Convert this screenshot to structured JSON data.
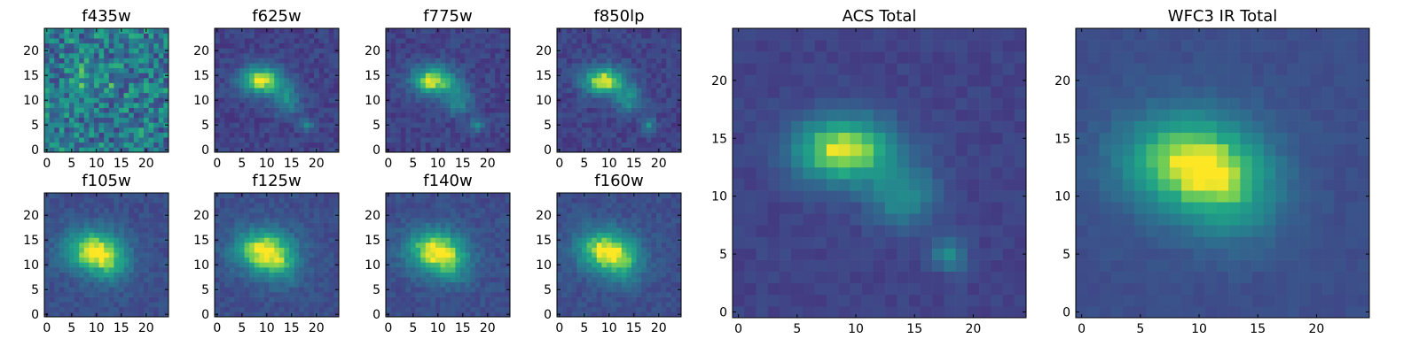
{
  "figure": {
    "background": "#ffffff",
    "colormap": "viridis"
  },
  "chart_data": [
    {
      "type": "heatmap",
      "title": "f435w",
      "grid": [
        25,
        25
      ],
      "xlim": [
        0,
        24
      ],
      "ylim": [
        0,
        24
      ],
      "xticks": [
        "0",
        "5",
        "10",
        "15",
        "20"
      ],
      "yticks": [
        "0",
        "5",
        "10",
        "15",
        "20"
      ],
      "noise": 0.55,
      "background_level": 0.5,
      "sources": [
        {
          "x": 9,
          "y": 14,
          "peak": 0.2,
          "sx": 3,
          "sy": 2
        }
      ]
    },
    {
      "type": "heatmap",
      "title": "f625w",
      "grid": [
        25,
        25
      ],
      "xlim": [
        0,
        24
      ],
      "ylim": [
        0,
        24
      ],
      "xticks": [
        "0",
        "5",
        "10",
        "15",
        "20"
      ],
      "yticks": [
        "0",
        "5",
        "10",
        "15",
        "20"
      ],
      "noise": 0.15,
      "background_level": 0.25,
      "sources": [
        {
          "x": 9,
          "y": 14,
          "peak": 0.75,
          "sx": 3,
          "sy": 2
        },
        {
          "x": 14,
          "y": 10,
          "peak": 0.35,
          "sx": 2,
          "sy": 2
        },
        {
          "x": 18,
          "y": 5,
          "peak": 0.35,
          "sx": 1,
          "sy": 1
        }
      ]
    },
    {
      "type": "heatmap",
      "title": "f775w",
      "grid": [
        25,
        25
      ],
      "xlim": [
        0,
        24
      ],
      "ylim": [
        0,
        24
      ],
      "xticks": [
        "0",
        "5",
        "10",
        "15",
        "20"
      ],
      "yticks": [
        "0",
        "5",
        "10",
        "15",
        "20"
      ],
      "noise": 0.15,
      "background_level": 0.25,
      "sources": [
        {
          "x": 9,
          "y": 14,
          "peak": 0.75,
          "sx": 3,
          "sy": 2
        },
        {
          "x": 14,
          "y": 10,
          "peak": 0.35,
          "sx": 2,
          "sy": 2
        },
        {
          "x": 18,
          "y": 5,
          "peak": 0.35,
          "sx": 1,
          "sy": 1
        }
      ]
    },
    {
      "type": "heatmap",
      "title": "f850lp",
      "grid": [
        25,
        25
      ],
      "xlim": [
        0,
        24
      ],
      "ylim": [
        0,
        24
      ],
      "xticks": [
        "0",
        "5",
        "10",
        "15",
        "20"
      ],
      "yticks": [
        "0",
        "5",
        "10",
        "15",
        "20"
      ],
      "noise": 0.15,
      "background_level": 0.25,
      "sources": [
        {
          "x": 9,
          "y": 14,
          "peak": 0.75,
          "sx": 3,
          "sy": 2
        },
        {
          "x": 14,
          "y": 10,
          "peak": 0.35,
          "sx": 2,
          "sy": 2
        },
        {
          "x": 18,
          "y": 5,
          "peak": 0.35,
          "sx": 1,
          "sy": 1
        }
      ]
    },
    {
      "type": "heatmap",
      "title": "f105w",
      "grid": [
        25,
        25
      ],
      "xlim": [
        0,
        24
      ],
      "ylim": [
        0,
        24
      ],
      "xticks": [
        "0",
        "5",
        "10",
        "15",
        "20"
      ],
      "yticks": [
        "0",
        "5",
        "10",
        "15",
        "20"
      ],
      "noise": 0.13,
      "background_level": 0.3,
      "sources": [
        {
          "x": 9,
          "y": 13,
          "peak": 0.65,
          "sx": 4,
          "sy": 3
        },
        {
          "x": 13,
          "y": 10,
          "peak": 0.3,
          "sx": 3,
          "sy": 3
        }
      ]
    },
    {
      "type": "heatmap",
      "title": "f125w",
      "grid": [
        25,
        25
      ],
      "xlim": [
        0,
        24
      ],
      "ylim": [
        0,
        24
      ],
      "xticks": [
        "0",
        "5",
        "10",
        "15",
        "20"
      ],
      "yticks": [
        "0",
        "5",
        "10",
        "15",
        "20"
      ],
      "noise": 0.13,
      "background_level": 0.3,
      "sources": [
        {
          "x": 9,
          "y": 13,
          "peak": 0.65,
          "sx": 4,
          "sy": 3
        },
        {
          "x": 13,
          "y": 10,
          "peak": 0.3,
          "sx": 3,
          "sy": 3
        }
      ]
    },
    {
      "type": "heatmap",
      "title": "f140w",
      "grid": [
        25,
        25
      ],
      "xlim": [
        0,
        24
      ],
      "ylim": [
        0,
        24
      ],
      "xticks": [
        "0",
        "5",
        "10",
        "15",
        "20"
      ],
      "yticks": [
        "0",
        "5",
        "10",
        "15",
        "20"
      ],
      "noise": 0.13,
      "background_level": 0.3,
      "sources": [
        {
          "x": 9,
          "y": 13,
          "peak": 0.65,
          "sx": 4,
          "sy": 3
        },
        {
          "x": 13,
          "y": 10,
          "peak": 0.3,
          "sx": 3,
          "sy": 3
        }
      ]
    },
    {
      "type": "heatmap",
      "title": "f160w",
      "grid": [
        25,
        25
      ],
      "xlim": [
        0,
        24
      ],
      "ylim": [
        0,
        24
      ],
      "xticks": [
        "0",
        "5",
        "10",
        "15",
        "20"
      ],
      "yticks": [
        "0",
        "5",
        "10",
        "15",
        "20"
      ],
      "noise": 0.13,
      "background_level": 0.3,
      "sources": [
        {
          "x": 9,
          "y": 13,
          "peak": 0.65,
          "sx": 4,
          "sy": 3
        },
        {
          "x": 13,
          "y": 10,
          "peak": 0.3,
          "sx": 3,
          "sy": 3
        }
      ]
    },
    {
      "type": "heatmap",
      "title": "ACS Total",
      "grid": [
        25,
        25
      ],
      "xlim": [
        0,
        24
      ],
      "ylim": [
        0,
        24
      ],
      "xticks": [
        "0",
        "5",
        "10",
        "15",
        "20"
      ],
      "yticks": [
        "0",
        "5",
        "10",
        "15",
        "20"
      ],
      "noise": 0.08,
      "background_level": 0.25,
      "sources": [
        {
          "x": 9,
          "y": 14,
          "peak": 0.75,
          "sx": 3,
          "sy": 2
        },
        {
          "x": 14,
          "y": 10,
          "peak": 0.35,
          "sx": 2,
          "sy": 2
        },
        {
          "x": 18,
          "y": 5,
          "peak": 0.35,
          "sx": 1,
          "sy": 1
        }
      ]
    },
    {
      "type": "heatmap",
      "title": "WFC3 IR Total",
      "grid": [
        25,
        25
      ],
      "xlim": [
        0,
        24
      ],
      "ylim": [
        0,
        24
      ],
      "xticks": [
        "0",
        "5",
        "10",
        "15",
        "20"
      ],
      "yticks": [
        "0",
        "5",
        "10",
        "15",
        "20"
      ],
      "noise": 0.06,
      "background_level": 0.3,
      "sources": [
        {
          "x": 9,
          "y": 13,
          "peak": 0.65,
          "sx": 4,
          "sy": 3
        },
        {
          "x": 13,
          "y": 10,
          "peak": 0.3,
          "sx": 3,
          "sy": 3
        }
      ]
    }
  ]
}
